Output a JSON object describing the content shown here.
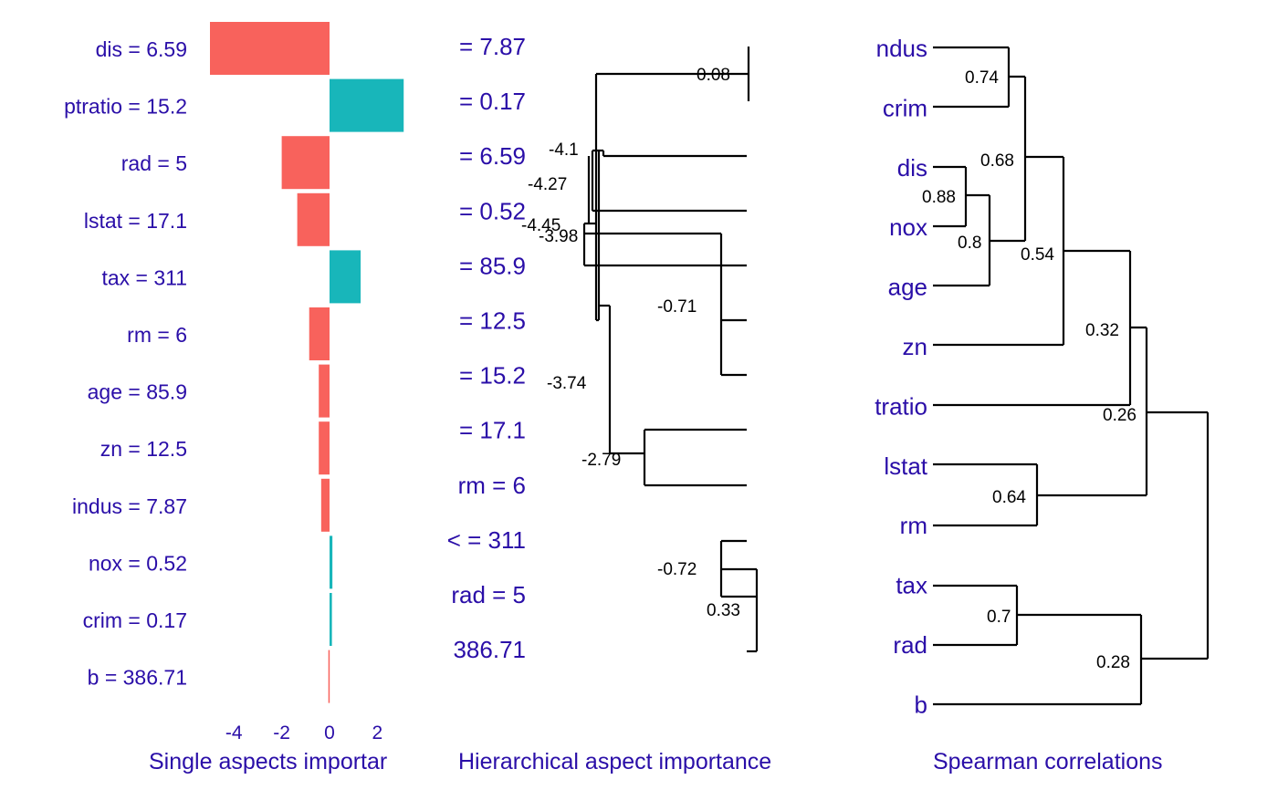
{
  "colors": {
    "negative": "#f8625c",
    "positive": "#18b6ba",
    "label": "#2a0ea8",
    "line": "#000000"
  },
  "chart_data": [
    {
      "type": "bar",
      "orientation": "horizontal",
      "title": "Single aspects importar",
      "categories": [
        "dis = 6.59",
        "ptratio = 15.2",
        "rad = 5",
        "lstat = 17.1",
        "tax = 311",
        "rm = 6",
        "age = 85.9",
        "zn = 12.5",
        "indus = 7.87",
        "nox = 0.52",
        "crim = 0.17",
        "b = 386.71"
      ],
      "values": [
        -5.0,
        3.1,
        -2.0,
        -1.35,
        1.3,
        -0.85,
        -0.45,
        -0.45,
        -0.35,
        0.12,
        0.1,
        -0.05
      ],
      "xticks": [
        -4,
        -2,
        0,
        2
      ],
      "xlim": [
        -5.2,
        3.5
      ]
    },
    {
      "type": "dendrogram",
      "title": "Hierarchical aspect importance",
      "leaf_labels": [
        "= 7.87",
        "= 0.17",
        "= 6.59",
        "= 0.52",
        "= 85.9",
        "= 12.5",
        "= 15.2",
        "= 17.1",
        "rm = 6",
        "< = 311",
        "rad = 5",
        "386.71"
      ],
      "node_labels": [
        "0.08",
        "-4.1",
        "-4.27",
        "-4.45",
        "-3.98",
        "-0.71",
        "-3.74",
        "-2.79",
        "-0.72",
        "0.33"
      ]
    },
    {
      "type": "dendrogram",
      "title": "Spearman correlations",
      "leaf_labels": [
        "ndus",
        "crim",
        "dis",
        "nox",
        "age",
        "zn",
        "tratio",
        "lstat",
        "rm",
        "tax",
        "rad",
        "b"
      ],
      "node_labels": [
        "0.74",
        "0.88",
        "0.8",
        "0.68",
        "0.54",
        "0.32",
        "0.26",
        "0.64",
        "0.7",
        "0.28"
      ]
    }
  ]
}
